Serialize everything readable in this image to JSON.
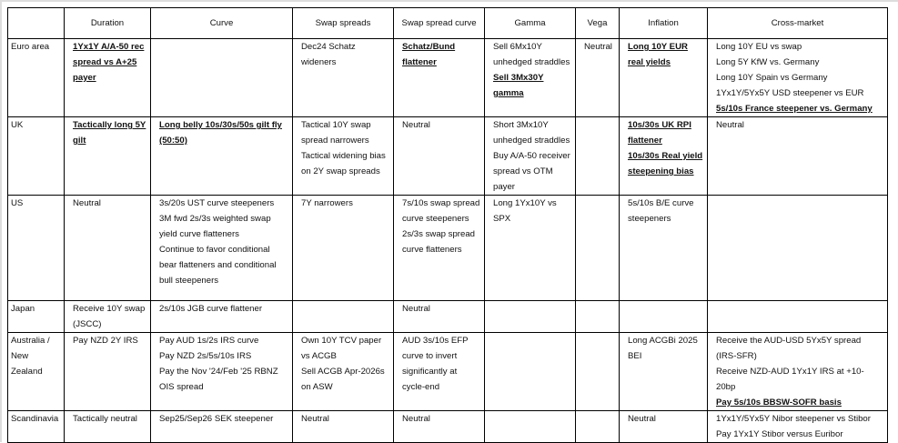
{
  "columns": [
    "",
    "Duration",
    "Curve",
    "Swap spreads",
    "Swap spread curve",
    "Gamma",
    "Vega",
    "Inflation",
    "Cross-market"
  ],
  "rows": [
    {
      "region": "Euro area",
      "cells": [
        [
          {
            "text": "1Yx1Y A/A-50 rec spread vs A+25 payer",
            "bold": true
          }
        ],
        [],
        [
          {
            "text": "Dec24 Schatz wideners",
            "bold": false
          }
        ],
        [
          {
            "text": "Schatz/Bund flattener",
            "bold": true
          }
        ],
        [
          {
            "text": "Sell 6Mx10Y unhedged straddles",
            "bold": false
          },
          {
            "text": "Sell 3Mx30Y gamma",
            "bold": true
          }
        ],
        [
          {
            "text": "Neutral",
            "bold": false
          }
        ],
        [
          {
            "text": "Long 10Y EUR real yields",
            "bold": true
          }
        ],
        [
          {
            "text": "Long 10Y EU vs swap",
            "bold": false
          },
          {
            "text": "Long 5Y KfW vs. Germany",
            "bold": false
          },
          {
            "text": "Long 10Y Spain vs Germany",
            "bold": false
          },
          {
            "text": "1Yx1Y/5Yx5Y USD steepener vs EUR",
            "bold": false
          },
          {
            "text": "5s/10s France steepener vs. Germany",
            "bold": true
          }
        ]
      ]
    },
    {
      "region": "UK",
      "cells": [
        [
          {
            "text": "Tactically long 5Y gilt",
            "bold": true
          }
        ],
        [
          {
            "text": "Long belly 10s/30s/50s gilt fly (50:50)",
            "bold": true
          }
        ],
        [
          {
            "text": "Tactical 10Y swap spread narrowers",
            "bold": false
          },
          {
            "text": "Tactical widening bias on 2Y swap spreads",
            "bold": false
          }
        ],
        [
          {
            "text": "Neutral",
            "bold": false
          }
        ],
        [
          {
            "text": "Short 3Mx10Y unhedged straddles",
            "bold": false
          },
          {
            "text": "Buy A/A-50 receiver spread vs OTM payer",
            "bold": false
          }
        ],
        [],
        [
          {
            "text": "10s/30s UK RPI flattener",
            "bold": true
          },
          {
            "text": "10s/30s Real yield steepening bias",
            "bold": true
          }
        ],
        [
          {
            "text": "Neutral",
            "bold": false
          }
        ]
      ]
    },
    {
      "region": "US",
      "cells": [
        [
          {
            "text": "Neutral",
            "bold": false
          }
        ],
        [
          {
            "text": "3s/20s UST curve steepeners",
            "bold": false
          },
          {
            "text": "3M fwd 2s/3s weighted swap yield curve flatteners",
            "bold": false
          },
          {
            "text": "Continue to favor conditional bear flatteners and conditional bull steepeners",
            "bold": false
          }
        ],
        [
          {
            "text": "7Y narrowers",
            "bold": false
          }
        ],
        [
          {
            "text": "7s/10s swap spread curve steepeners",
            "bold": false
          },
          {
            "text": "2s/3s swap spread curve flatteners",
            "bold": false
          }
        ],
        [
          {
            "text": "Long 1Yx10Y vs SPX",
            "bold": false
          }
        ],
        [],
        [
          {
            "text": "5s/10s B/E curve steepeners",
            "bold": false
          }
        ],
        []
      ]
    },
    {
      "region": "Japan",
      "cells": [
        [
          {
            "text": "Receive 10Y swap (JSCC)",
            "bold": false
          }
        ],
        [
          {
            "text": "2s/10s JGB curve flattener",
            "bold": false
          }
        ],
        [],
        [
          {
            "text": "Neutral",
            "bold": false
          }
        ],
        [],
        [],
        [],
        []
      ]
    },
    {
      "region": "Australia / New Zealand",
      "cells": [
        [
          {
            "text": "Pay NZD 2Y IRS",
            "bold": false
          }
        ],
        [
          {
            "text": "Pay AUD 1s/2s IRS curve",
            "bold": false
          },
          {
            "text": "Pay NZD 2s/5s/10s IRS",
            "bold": false
          },
          {
            "text": "Pay the Nov '24/Feb '25 RBNZ OIS spread",
            "bold": false
          }
        ],
        [
          {
            "text": "Own 10Y TCV paper vs ACGB",
            "bold": false
          },
          {
            "text": "Sell ACGB Apr-2026s on ASW",
            "bold": false
          }
        ],
        [
          {
            "text": "AUD 3s/10s EFP curve to invert significantly at cycle-end",
            "bold": false
          }
        ],
        [],
        [],
        [
          {
            "text": "Long ACGBi 2025 BEI",
            "bold": false
          }
        ],
        [
          {
            "text": "Receive the AUD-USD 5Yx5Y spread (IRS-SFR)",
            "bold": false
          },
          {
            "text": "Receive NZD-AUD 1Yx1Y IRS at +10-20bp",
            "bold": false
          },
          {
            "text": "Pay 5s/10s BBSW-SOFR basis",
            "bold": true
          }
        ]
      ]
    },
    {
      "region": "Scandinavia",
      "cells": [
        [
          {
            "text": "Tactically neutral",
            "bold": false
          }
        ],
        [
          {
            "text": "Sep25/Sep26 SEK steepener",
            "bold": false
          }
        ],
        [
          {
            "text": "Neutral",
            "bold": false
          }
        ],
        [
          {
            "text": "Neutral",
            "bold": false
          }
        ],
        [],
        [],
        [
          {
            "text": "Neutral",
            "bold": false
          }
        ],
        [
          {
            "text": "1Yx1Y/5Yx5Y Nibor steepener vs Stibor",
            "bold": false
          },
          {
            "text": "Pay 1Yx1Y Stibor versus Euribor",
            "bold": false
          }
        ]
      ]
    }
  ]
}
